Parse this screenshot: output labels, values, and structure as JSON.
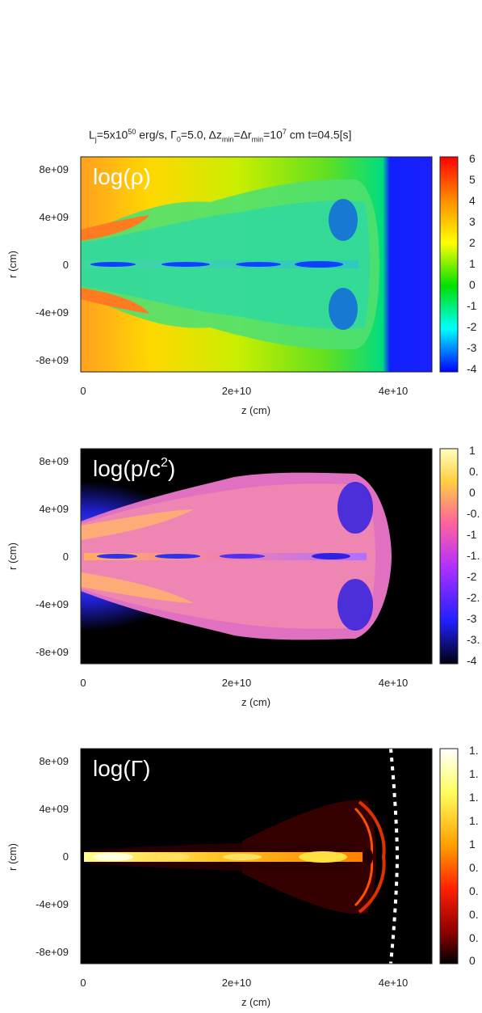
{
  "title": {
    "part1": "L",
    "sub_j": "j",
    "part2": "=5x10",
    "sup_50": "50",
    "part3": " erg/s, Γ",
    "sub_0": "0",
    "part4": "=5.0, Δz",
    "sub_min1": "min",
    "part5": "=Δr",
    "sub_min2": "min",
    "part6": "=10",
    "sup_7": "7",
    "part7": " cm t=04.5[s]"
  },
  "chart_data": [
    {
      "type": "heatmap",
      "panel_label": "log(ρ)",
      "xlabel": "z (cm)",
      "ylabel": "r (cm)",
      "xlim": [
        0,
        45000000000.0
      ],
      "ylim": [
        -9000000000.0,
        9000000000.0
      ],
      "x_ticks": [
        "0",
        "2e+10",
        "4e+10"
      ],
      "y_ticks": [
        "8e+09",
        "4e+09",
        "0",
        "-4e+09",
        "-8e+09"
      ],
      "colorbar_ticks": [
        "6",
        "5",
        "4",
        "3",
        "2",
        "1",
        "0",
        "-1",
        "-2",
        "-3",
        "-4"
      ],
      "colorbar_range": [
        -4,
        6
      ],
      "colormap": [
        "#ff0000",
        "#ff8c00",
        "#ffff00",
        "#00e000",
        "#00ffff",
        "#0000ff"
      ]
    },
    {
      "type": "heatmap",
      "panel_label_base": "log(p/c",
      "panel_label_sup": "2",
      "panel_label_end": ")",
      "xlabel": "z (cm)",
      "ylabel": "r (cm)",
      "xlim": [
        0,
        45000000000.0
      ],
      "ylim": [
        -9000000000.0,
        9000000000.0
      ],
      "x_ticks": [
        "0",
        "2e+10",
        "4e+10"
      ],
      "y_ticks": [
        "8e+09",
        "4e+09",
        "0",
        "-4e+09",
        "-8e+09"
      ],
      "colorbar_ticks": [
        "1",
        "0.",
        "0",
        "-0.",
        "-1",
        "-1.",
        "-2",
        "-2.",
        "-3",
        "-3.",
        "-4"
      ],
      "colorbar_range": [
        -4,
        1
      ],
      "colormap": [
        "#ffffc0",
        "#ffb000",
        "#ff60a0",
        "#c040ff",
        "#2020ff",
        "#000010"
      ]
    },
    {
      "type": "heatmap",
      "panel_label": "log(Γ)",
      "xlabel": "z (cm)",
      "ylabel": "r (cm)",
      "xlim": [
        0,
        45000000000.0
      ],
      "ylim": [
        -9000000000.0,
        9000000000.0
      ],
      "x_ticks": [
        "0",
        "2e+10",
        "4e+10"
      ],
      "y_ticks": [
        "8e+09",
        "4e+09",
        "0",
        "-4e+09",
        "-8e+09"
      ],
      "colorbar_ticks": [
        "1.",
        "1.",
        "1.",
        "1.",
        "1",
        "0.",
        "0.",
        "0.",
        "0.",
        "0"
      ],
      "colorbar_range": [
        0,
        1
      ],
      "colormap": [
        "#ffffff",
        "#ffff60",
        "#ffa000",
        "#ff2000",
        "#900000",
        "#000000"
      ]
    }
  ]
}
